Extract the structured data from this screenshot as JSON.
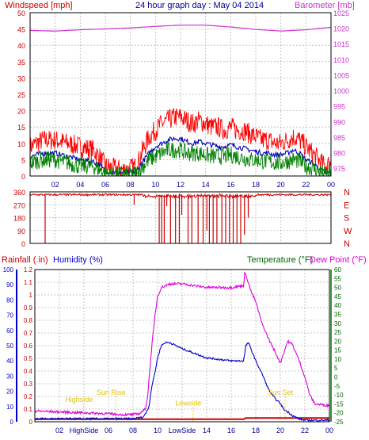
{
  "header": {
    "title": "24 hour graph day : May 04 2014",
    "left_label": "Windspeed [mph]",
    "right_label": "Barometer [mb]"
  },
  "colors": {
    "gust": "#ff0000",
    "avg": "#0000bb",
    "wind": "#008000",
    "baro": "#cc33cc",
    "rain": "#cc0000",
    "humidity": "#0000cc",
    "temp": "#006600",
    "dew": "#dd00dd",
    "annot": "#e0c000",
    "grid": "#b8b8b8",
    "title": "#000099"
  },
  "chart_data": [
    {
      "type": "line",
      "name": "wind-barometer",
      "x_ticks": [
        "02",
        "04",
        "06",
        "08",
        "10",
        "12",
        "14",
        "16",
        "18",
        "20",
        "22",
        "00"
      ],
      "xlim": [
        0,
        24
      ],
      "y_left": {
        "label": "Windspeed [mph]",
        "ylim": [
          0,
          50
        ],
        "ticks": [
          0,
          5,
          10,
          15,
          20,
          25,
          30,
          35,
          40,
          45,
          50
        ]
      },
      "y_right": {
        "label": "Barometer [mb]",
        "ylim": [
          972.5,
          1025
        ],
        "ticks": [
          975,
          980,
          985,
          990,
          995,
          1000,
          1005,
          1010,
          1015,
          1020,
          1025
        ]
      },
      "grid": true,
      "series": [
        {
          "key": "gust",
          "axis": "left",
          "style": "noisy",
          "x": [
            0,
            1,
            2,
            3,
            4,
            5,
            5.5,
            6,
            7,
            7.8,
            8.5,
            9,
            9.5,
            10,
            10.5,
            11,
            11.5,
            12,
            12.5,
            13,
            13.5,
            14,
            14.5,
            15,
            15.5,
            16,
            16.5,
            17,
            17.5,
            18,
            18.5,
            19,
            19.5,
            20,
            20.5,
            21,
            21.5,
            22,
            22.5,
            23,
            23.5,
            24
          ],
          "y": [
            9,
            11,
            11,
            10,
            9,
            8,
            6,
            3,
            2,
            2,
            3,
            8,
            12,
            14,
            16,
            17,
            18,
            18,
            17,
            16,
            17,
            16,
            15,
            15,
            14,
            15,
            14,
            14,
            13,
            12,
            11,
            11,
            10,
            10,
            11,
            12,
            11,
            9,
            7,
            5,
            3,
            4
          ]
        },
        {
          "key": "avg",
          "axis": "left",
          "style": "smooth",
          "x": [
            0,
            1,
            2,
            3,
            4,
            5,
            5.5,
            6,
            7,
            7.8,
            8.5,
            9,
            9.5,
            10,
            10.5,
            11,
            11.5,
            12,
            12.5,
            13,
            13.5,
            14,
            14.5,
            15,
            15.5,
            16,
            16.5,
            17,
            17.5,
            18,
            18.5,
            19,
            19.5,
            20,
            20.5,
            21,
            21.5,
            22,
            22.5,
            23,
            23.5,
            24
          ],
          "y": [
            6,
            7,
            7,
            6,
            5,
            4.5,
            3.5,
            1.5,
            1,
            1,
            1.5,
            4.5,
            7,
            9,
            10,
            11,
            11.5,
            11.5,
            10.5,
            10,
            10.5,
            10,
            9.5,
            9,
            9,
            9.5,
            9,
            8.5,
            8,
            7.5,
            7,
            7,
            6.5,
            6.5,
            7,
            8,
            7,
            5,
            4,
            2.5,
            1,
            1
          ]
        },
        {
          "key": "wind",
          "axis": "left",
          "style": "noisy-fill",
          "x": [
            0,
            1,
            2,
            3,
            4,
            5,
            5.5,
            6,
            7,
            7.8,
            8.5,
            9,
            9.5,
            10,
            10.5,
            11,
            11.5,
            12,
            12.5,
            13,
            13.5,
            14,
            14.5,
            15,
            15.5,
            16,
            16.5,
            17,
            17.5,
            18,
            18.5,
            19,
            19.5,
            20,
            20.5,
            21,
            21.5,
            22,
            22.5,
            23,
            23.5,
            24
          ],
          "y": [
            4,
            5,
            5,
            4,
            3,
            3,
            2,
            1,
            0.5,
            0.5,
            1,
            3,
            5,
            6,
            7,
            8,
            8,
            8,
            7,
            7,
            7,
            6.5,
            6,
            6,
            6,
            6.5,
            6,
            5.5,
            5,
            5,
            4.5,
            4.5,
            4,
            4,
            4.5,
            5,
            4.5,
            3,
            2.5,
            1.5,
            0.5,
            1
          ]
        },
        {
          "key": "baro",
          "axis": "right",
          "style": "smooth",
          "x": [
            0,
            2,
            4,
            6,
            8,
            10,
            12,
            14,
            16,
            18,
            20,
            22,
            24
          ],
          "y": [
            1019.3,
            1019.1,
            1019.5,
            1019.8,
            1020.1,
            1020.6,
            1021.0,
            1021.0,
            1020.4,
            1019.6,
            1019.1,
            1019.5,
            1020.3
          ]
        }
      ]
    },
    {
      "type": "scatter",
      "name": "wind-direction",
      "y_left": {
        "ticks": [
          0,
          90,
          180,
          270,
          360
        ],
        "ylim": [
          0,
          360
        ]
      },
      "y_right": {
        "ticks": [
          "N",
          "W",
          "S",
          "E",
          "N"
        ]
      },
      "series": [
        {
          "key": "direction",
          "base": 340,
          "drops": [
            [
              1.2,
              0
            ],
            [
              8.3,
              270
            ],
            [
              10.3,
              0
            ],
            [
              10.5,
              0
            ],
            [
              10.7,
              0
            ],
            [
              10.9,
              260
            ],
            [
              11.2,
              0
            ],
            [
              11.6,
              0
            ],
            [
              11.9,
              0
            ],
            [
              12.1,
              200
            ],
            [
              12.6,
              0
            ],
            [
              12.9,
              0
            ],
            [
              13.4,
              0
            ],
            [
              13.8,
              0
            ],
            [
              14.1,
              90
            ],
            [
              14.3,
              0
            ],
            [
              14.6,
              0
            ],
            [
              14.9,
              0
            ],
            [
              15.3,
              0
            ],
            [
              15.6,
              0
            ],
            [
              15.9,
              0
            ],
            [
              16.2,
              0
            ],
            [
              16.5,
              0
            ],
            [
              16.8,
              0
            ],
            [
              17.1,
              60
            ],
            [
              17.4,
              180
            ]
          ]
        }
      ]
    },
    {
      "type": "line",
      "name": "rain-humidity-temp",
      "x_ticks": [
        "02",
        "HighSide",
        "06",
        "08",
        "10",
        "LowSide",
        "14",
        "16",
        "18",
        "20",
        "22",
        "00"
      ],
      "xlim": [
        0,
        24
      ],
      "y_rain": {
        "label": "Rainfall (.in)",
        "ylim": [
          0,
          1.2
        ],
        "ticks": [
          "0",
          "0.1",
          "0.2",
          "0.3",
          "0.4",
          "0.5",
          "0.6",
          "0.7",
          "0.8",
          "0.9",
          "1",
          "1.1",
          "1.2"
        ]
      },
      "y_humidity": {
        "label": "Humidity (%)",
        "ylim": [
          0,
          100
        ],
        "ticks": [
          0,
          10,
          20,
          30,
          40,
          50,
          60,
          70,
          80,
          90,
          100
        ]
      },
      "y_temp": {
        "label": "Temperature (°F)",
        "ylim": [
          -25,
          60
        ],
        "ticks": [
          -25,
          -20,
          -15,
          -10,
          -5,
          0,
          5,
          10,
          15,
          20,
          25,
          30,
          35,
          40,
          45,
          50,
          55,
          60
        ]
      },
      "dew_label": "Dew Point (°F)",
      "grid": true,
      "series": [
        {
          "key": "rain",
          "axis": "rain",
          "x": [
            0,
            9.2,
            9.5,
            17,
            17.2,
            24
          ],
          "y": [
            0.02,
            0.02,
            0.02,
            0.02,
            0.03,
            0.03
          ]
        },
        {
          "key": "humidity",
          "axis": "humidity",
          "x": [
            0,
            2,
            4,
            6,
            8,
            8.8,
            9,
            9.3,
            9.5,
            9.8,
            10,
            10.3,
            10.6,
            11,
            11.5,
            12,
            13,
            14,
            15,
            16,
            17,
            17.2,
            17.4,
            17.7,
            18,
            18.3,
            18.6,
            19,
            19.3,
            19.6,
            20,
            20.3,
            20.7,
            21,
            21.5,
            22,
            24
          ],
          "y": [
            2,
            2,
            2,
            2,
            2,
            3,
            5,
            10,
            22,
            33,
            42,
            50,
            52,
            52,
            50,
            48,
            45,
            42,
            41,
            40,
            40,
            50,
            52,
            46,
            40,
            35,
            30,
            22,
            18,
            15,
            12,
            8,
            6,
            4,
            2,
            1,
            1
          ]
        },
        {
          "key": "dew",
          "axis": "temp",
          "x": [
            0,
            2,
            4,
            6,
            7,
            8,
            8.5,
            9,
            9.2,
            9.5,
            9.8,
            10,
            10.3,
            11,
            12,
            13,
            14,
            15,
            16,
            17,
            17.1,
            17.3,
            17.6,
            18,
            18.5,
            19,
            19.5,
            20,
            20.3,
            20.6,
            21,
            21.3,
            21.6,
            22,
            22.4,
            22.8,
            24
          ],
          "y": [
            -19,
            -19.5,
            -20,
            -20.5,
            -21,
            -21,
            -20.5,
            -18,
            -10,
            15,
            35,
            45,
            50,
            52,
            52,
            51,
            50,
            50,
            50,
            51,
            58,
            55,
            48,
            42,
            30,
            22,
            15,
            8,
            14,
            20,
            18,
            13,
            8,
            0,
            -10,
            -15,
            -16
          ]
        }
      ],
      "annotations": [
        {
          "text": "Highside",
          "x": 3.6,
          "value": -14
        },
        {
          "text": "Sun Rise",
          "x": 6.2,
          "value": -10
        },
        {
          "text": "Lowside",
          "x": 12.5,
          "value": -16
        },
        {
          "text": "Sun Set",
          "x": 20.0,
          "value": -10
        }
      ]
    }
  ]
}
